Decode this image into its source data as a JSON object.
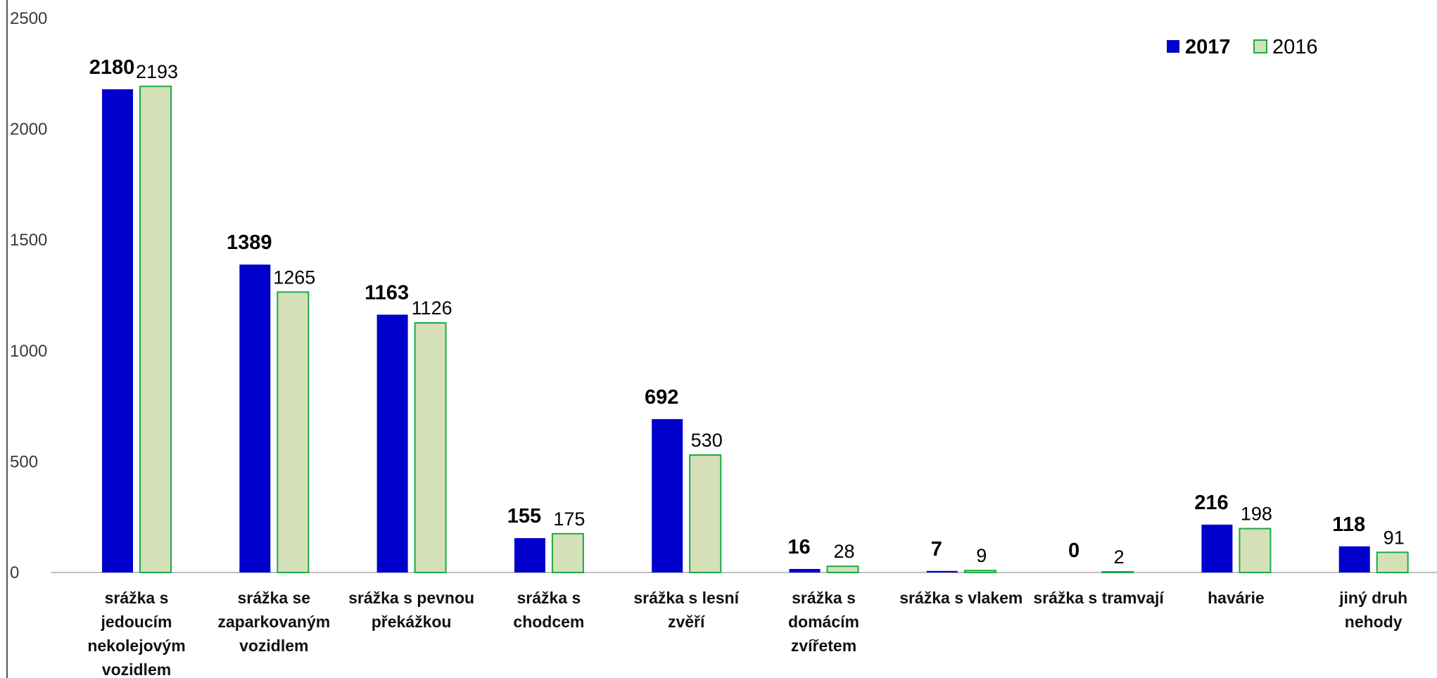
{
  "chart_data": {
    "type": "bar",
    "categories": [
      "srážka s jedoucím nekolejovým vozidlem",
      "srážka se zaparkovaným vozidlem",
      "srážka s pevnou překážkou",
      "srážka s chodcem",
      "srážka s lesní zvěří",
      "srážka s domácím zvířetem",
      "srážka s vlakem",
      "srážka s tramvají",
      "havárie",
      "jiný druh nehody"
    ],
    "category_lines": [
      [
        "srážka s",
        "jedoucím",
        "nekolejovým",
        "vozidlem"
      ],
      [
        "srážka se",
        "zaparkovaným",
        "vozidlem"
      ],
      [
        "srážka s pevnou",
        "překážkou"
      ],
      [
        "srážka s",
        "chodcem"
      ],
      [
        "srážka s lesní",
        "zvěří"
      ],
      [
        "srážka s",
        "domácím",
        "zvířetem"
      ],
      [
        "srážka s vlakem"
      ],
      [
        "srážka s tramvají"
      ],
      [
        "havárie"
      ],
      [
        "jiný druh",
        "nehody"
      ]
    ],
    "series": [
      {
        "name": "2017",
        "values": [
          2180,
          1389,
          1163,
          155,
          692,
          16,
          7,
          0,
          216,
          118
        ]
      },
      {
        "name": "2016",
        "values": [
          2193,
          1265,
          1126,
          175,
          530,
          28,
          9,
          2,
          198,
          91
        ]
      }
    ],
    "yticks": [
      0,
      500,
      1000,
      1500,
      2000,
      2500
    ],
    "ylim": [
      0,
      2500
    ],
    "title": "",
    "xlabel": "",
    "ylabel": "",
    "grid": false,
    "legend_position": "top-right",
    "colors": {
      "series_2017_fill": "#0000cc",
      "series_2016_fill": "#d6e0b8",
      "series_2016_stroke": "#1aaa44",
      "axis": "#bfbfbf",
      "frame": "#555555"
    }
  }
}
